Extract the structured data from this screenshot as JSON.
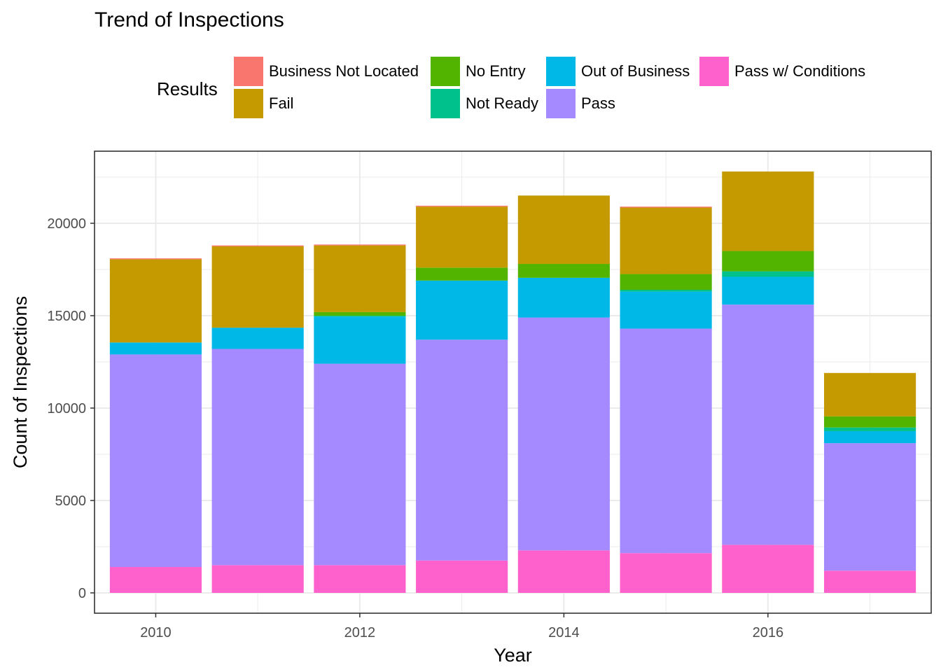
{
  "chart_data": {
    "type": "bar",
    "stacked": true,
    "title": "Trend of Inspections",
    "xlabel": "Year",
    "ylabel": "Count of Inspections",
    "legend_title": "Results",
    "legend_position": "top",
    "grid": true,
    "categories": [
      2010,
      2011,
      2012,
      2013,
      2014,
      2015,
      2016,
      2017
    ],
    "x_ticks": [
      "2010",
      "2012",
      "2014",
      "2016"
    ],
    "x_tick_values": [
      2010,
      2012,
      2014,
      2016
    ],
    "y_ticks": [
      "0",
      "5000",
      "10000",
      "15000",
      "20000"
    ],
    "y_tick_values": [
      0,
      5000,
      10000,
      15000,
      20000
    ],
    "xlim": [
      2009.4,
      2017.6
    ],
    "ylim": [
      -1100,
      23900
    ],
    "series": [
      {
        "name": "Pass w/ Conditions",
        "color": "#FF61CC",
        "values": [
          1400,
          1500,
          1500,
          1750,
          2300,
          2150,
          2600,
          1200
        ]
      },
      {
        "name": "Pass",
        "color": "#A58AFF",
        "values": [
          11500,
          11700,
          10900,
          11950,
          12600,
          12150,
          13000,
          6900
        ]
      },
      {
        "name": "Out of Business",
        "color": "#00B8E7",
        "values": [
          650,
          1150,
          2550,
          3200,
          2150,
          2000,
          1500,
          650
        ]
      },
      {
        "name": "Not Ready",
        "color": "#00C08B",
        "values": [
          0,
          0,
          50,
          0,
          0,
          100,
          300,
          200
        ]
      },
      {
        "name": "No Entry",
        "color": "#53B400",
        "values": [
          0,
          0,
          200,
          700,
          750,
          850,
          1100,
          600
        ]
      },
      {
        "name": "Fail",
        "color": "#C49A00",
        "values": [
          4500,
          4400,
          3600,
          3300,
          3700,
          3600,
          4300,
          2350
        ]
      },
      {
        "name": "Business Not Located",
        "color": "#F8766D",
        "values": [
          50,
          50,
          50,
          50,
          0,
          50,
          0,
          0
        ]
      }
    ],
    "legend": [
      {
        "label": "Business Not Located",
        "color": "#F8766D"
      },
      {
        "label": "Fail",
        "color": "#C49A00"
      },
      {
        "label": "No Entry",
        "color": "#53B400"
      },
      {
        "label": "Not Ready",
        "color": "#00C08B"
      },
      {
        "label": "Out of Business",
        "color": "#00B8E7"
      },
      {
        "label": "Pass",
        "color": "#A58AFF"
      },
      {
        "label": "Pass w/ Conditions",
        "color": "#FF61CC"
      }
    ]
  }
}
